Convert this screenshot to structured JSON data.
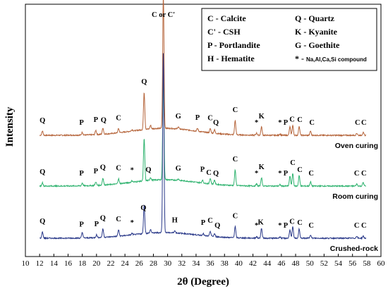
{
  "chart_data": {
    "type": "line",
    "xlabel": "2θ (Degree)",
    "ylabel": "Intensity",
    "xlim": [
      10,
      60
    ],
    "xticks": [
      10,
      12,
      14,
      16,
      18,
      20,
      22,
      24,
      26,
      28,
      30,
      32,
      34,
      36,
      38,
      40,
      42,
      44,
      46,
      48,
      50,
      52,
      54,
      56,
      58,
      60
    ],
    "grid": false,
    "legend": {
      "position": "top-right",
      "entries": [
        {
          "symbol": "C",
          "name": "Calcite"
        },
        {
          "symbol": "Q",
          "name": "Quartz"
        },
        {
          "symbol": "C'",
          "name": "CSH"
        },
        {
          "symbol": "K",
          "name": "Kyanite"
        },
        {
          "symbol": "P",
          "name": "Portlandite"
        },
        {
          "symbol": "G",
          "name": "Goethite"
        },
        {
          "symbol": "H",
          "name": "Hematite"
        },
        {
          "symbol": "*",
          "name": "Na,Al,Ca,Si compound"
        }
      ]
    },
    "series": [
      {
        "name": "Oven curing",
        "color": "#b5643a",
        "peaks": [
          {
            "x": 12.4,
            "h": 6
          },
          {
            "x": 18.0,
            "h": 4
          },
          {
            "x": 19.9,
            "h": 6
          },
          {
            "x": 20.9,
            "h": 9
          },
          {
            "x": 23.1,
            "h": 6
          },
          {
            "x": 25.0,
            "h": 2
          },
          {
            "x": 26.7,
            "h": 53
          },
          {
            "x": 27.6,
            "h": 5
          },
          {
            "x": 29.4,
            "h": 190
          },
          {
            "x": 31.5,
            "h": 3
          },
          {
            "x": 34.2,
            "h": 4
          },
          {
            "x": 36.0,
            "h": 6
          },
          {
            "x": 36.6,
            "h": 5
          },
          {
            "x": 39.5,
            "h": 20
          },
          {
            "x": 42.5,
            "h": 3
          },
          {
            "x": 43.2,
            "h": 12
          },
          {
            "x": 45.8,
            "h": 2
          },
          {
            "x": 47.2,
            "h": 12
          },
          {
            "x": 47.6,
            "h": 14
          },
          {
            "x": 48.5,
            "h": 13
          },
          {
            "x": 50.1,
            "h": 6
          },
          {
            "x": 56.6,
            "h": 3
          },
          {
            "x": 57.5,
            "h": 4
          }
        ],
        "labels": [
          {
            "x": 12.4,
            "t": "Q"
          },
          {
            "x": 17.9,
            "t": "P"
          },
          {
            "x": 19.9,
            "t": "P"
          },
          {
            "x": 21.0,
            "t": "Q"
          },
          {
            "x": 23.1,
            "t": "C"
          },
          {
            "x": 26.7,
            "t": "Q"
          },
          {
            "x": 31.5,
            "t": "G"
          },
          {
            "x": 34.2,
            "t": "P"
          },
          {
            "x": 36.0,
            "t": "C"
          },
          {
            "x": 36.8,
            "t": "Q"
          },
          {
            "x": 39.5,
            "t": "C"
          },
          {
            "x": 42.5,
            "t": "*"
          },
          {
            "x": 43.2,
            "t": "K"
          },
          {
            "x": 45.8,
            "t": "*"
          },
          {
            "x": 46.6,
            "t": "P"
          },
          {
            "x": 47.5,
            "t": "C"
          },
          {
            "x": 48.6,
            "t": "C"
          },
          {
            "x": 50.3,
            "t": "C"
          },
          {
            "x": 56.7,
            "t": "C"
          },
          {
            "x": 57.6,
            "t": "C"
          }
        ]
      },
      {
        "name": "Room curing",
        "color": "#2fb36f",
        "peaks": [
          {
            "x": 12.4,
            "h": 5
          },
          {
            "x": 18.0,
            "h": 4
          },
          {
            "x": 19.9,
            "h": 5
          },
          {
            "x": 20.9,
            "h": 10
          },
          {
            "x": 23.1,
            "h": 7
          },
          {
            "x": 25.0,
            "h": 2
          },
          {
            "x": 26.7,
            "h": 60
          },
          {
            "x": 27.6,
            "h": 4
          },
          {
            "x": 29.4,
            "h": 150
          },
          {
            "x": 31.5,
            "h": 2
          },
          {
            "x": 34.9,
            "h": 4
          },
          {
            "x": 36.0,
            "h": 8
          },
          {
            "x": 36.6,
            "h": 6
          },
          {
            "x": 39.5,
            "h": 22
          },
          {
            "x": 42.5,
            "h": 3
          },
          {
            "x": 43.2,
            "h": 12
          },
          {
            "x": 45.8,
            "h": 2
          },
          {
            "x": 47.2,
            "h": 14
          },
          {
            "x": 47.6,
            "h": 18
          },
          {
            "x": 48.5,
            "h": 15
          },
          {
            "x": 50.1,
            "h": 6
          },
          {
            "x": 56.6,
            "h": 3
          },
          {
            "x": 57.5,
            "h": 5
          }
        ],
        "labels": [
          {
            "x": 12.4,
            "t": "Q"
          },
          {
            "x": 17.9,
            "t": "P"
          },
          {
            "x": 19.9,
            "t": "P"
          },
          {
            "x": 20.9,
            "t": "Q"
          },
          {
            "x": 23.1,
            "t": "C"
          },
          {
            "x": 25.0,
            "t": "*"
          },
          {
            "x": 27.3,
            "t": "Q"
          },
          {
            "x": 31.5,
            "t": "G"
          },
          {
            "x": 34.9,
            "t": "P"
          },
          {
            "x": 35.8,
            "t": "C"
          },
          {
            "x": 36.8,
            "t": "Q"
          },
          {
            "x": 39.5,
            "t": "C"
          },
          {
            "x": 42.5,
            "t": "*"
          },
          {
            "x": 43.2,
            "t": "K"
          },
          {
            "x": 45.8,
            "t": "*"
          },
          {
            "x": 46.6,
            "t": "P"
          },
          {
            "x": 47.6,
            "t": "C"
          },
          {
            "x": 48.6,
            "t": "C"
          },
          {
            "x": 50.2,
            "t": "C"
          },
          {
            "x": 56.6,
            "t": "C"
          },
          {
            "x": 57.6,
            "t": "C"
          }
        ]
      },
      {
        "name": "Crushed-rock",
        "color": "#2b3a8a",
        "peaks": [
          {
            "x": 12.4,
            "h": 9
          },
          {
            "x": 18.0,
            "h": 8
          },
          {
            "x": 20.0,
            "h": 4
          },
          {
            "x": 20.9,
            "h": 12
          },
          {
            "x": 23.1,
            "h": 9
          },
          {
            "x": 25.0,
            "h": 2
          },
          {
            "x": 26.7,
            "h": 40
          },
          {
            "x": 27.6,
            "h": 5
          },
          {
            "x": 29.4,
            "h": 255
          },
          {
            "x": 31.0,
            "h": 3
          },
          {
            "x": 35.0,
            "h": 3
          },
          {
            "x": 36.0,
            "h": 7
          },
          {
            "x": 36.6,
            "h": 4
          },
          {
            "x": 39.5,
            "h": 16
          },
          {
            "x": 42.5,
            "h": 2
          },
          {
            "x": 43.2,
            "h": 14
          },
          {
            "x": 45.8,
            "h": 2
          },
          {
            "x": 47.2,
            "h": 12
          },
          {
            "x": 47.6,
            "h": 16
          },
          {
            "x": 48.5,
            "h": 13
          },
          {
            "x": 50.1,
            "h": 5
          },
          {
            "x": 56.6,
            "h": 3
          },
          {
            "x": 57.5,
            "h": 3
          }
        ],
        "labels": [
          {
            "x": 12.4,
            "t": "Q"
          },
          {
            "x": 17.9,
            "t": "P"
          },
          {
            "x": 20.0,
            "t": "P"
          },
          {
            "x": 20.9,
            "t": "Q"
          },
          {
            "x": 23.1,
            "t": "C"
          },
          {
            "x": 25.0,
            "t": "*"
          },
          {
            "x": 26.6,
            "t": "Q"
          },
          {
            "x": 31.0,
            "t": "H"
          },
          {
            "x": 35.0,
            "t": "P"
          },
          {
            "x": 36.0,
            "t": "C"
          },
          {
            "x": 37.0,
            "t": "Q"
          },
          {
            "x": 39.5,
            "t": "C"
          },
          {
            "x": 42.5,
            "t": "*"
          },
          {
            "x": 43.1,
            "t": "K"
          },
          {
            "x": 45.8,
            "t": "*"
          },
          {
            "x": 46.6,
            "t": "P"
          },
          {
            "x": 47.5,
            "t": "C"
          },
          {
            "x": 48.6,
            "t": "C"
          },
          {
            "x": 50.2,
            "t": "C"
          },
          {
            "x": 56.6,
            "t": "C"
          },
          {
            "x": 57.6,
            "t": "C"
          }
        ]
      }
    ],
    "top_annotation": {
      "x": 29.4,
      "text": "C or C'"
    }
  }
}
